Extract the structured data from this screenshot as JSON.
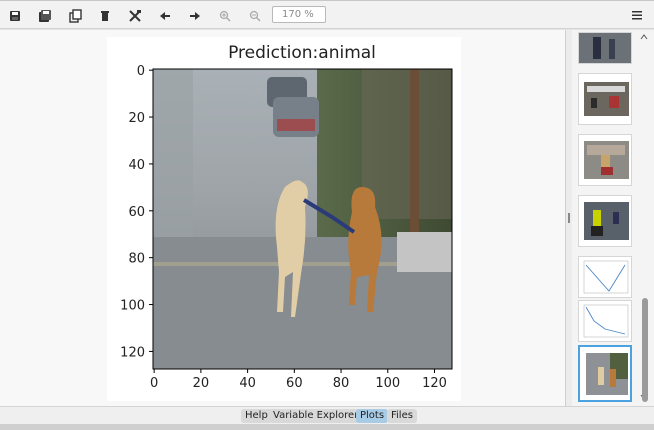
{
  "toolbar": {
    "icons": [
      "save-icon",
      "save-all-icon",
      "copy-icon",
      "delete-icon",
      "delete-all-icon",
      "arrow-left-icon",
      "arrow-right-icon",
      "zoom-in-icon",
      "zoom-out-icon",
      "menu-icon"
    ],
    "zoom_value": "170 %"
  },
  "plot": {
    "title": "Prediction:animal",
    "x_ticks": [
      "0",
      "20",
      "40",
      "60",
      "80",
      "100",
      "120"
    ],
    "y_ticks": [
      "0",
      "20",
      "40",
      "60",
      "80",
      "100",
      "120"
    ]
  },
  "thumbnails": [
    {
      "name": "thumb-street-scene-1"
    },
    {
      "name": "thumb-street-scene-2"
    },
    {
      "name": "thumb-scooter-scene"
    },
    {
      "name": "thumb-motorbike-scene"
    },
    {
      "name": "thumb-line-chart-1"
    },
    {
      "name": "thumb-line-chart-2"
    },
    {
      "name": "thumb-dogs-prediction",
      "active": true
    }
  ],
  "tabs": [
    {
      "label": "Help",
      "active": false
    },
    {
      "label": "Variable Explorer",
      "active": false
    },
    {
      "label": "Plots",
      "active": true
    },
    {
      "label": "Files",
      "active": false
    }
  ]
}
